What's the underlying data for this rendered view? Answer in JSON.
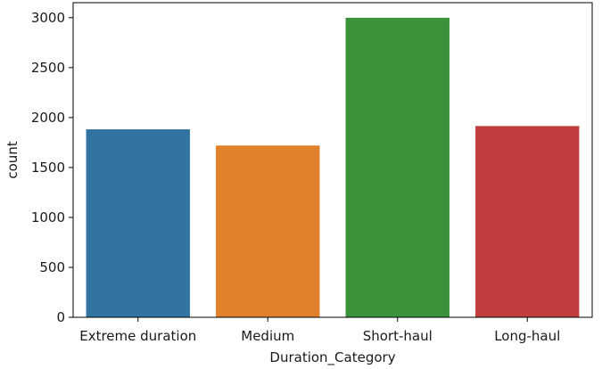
{
  "chart_data": {
    "type": "bar",
    "title": "",
    "xlabel": "Duration_Category",
    "ylabel": "count",
    "categories": [
      "Extreme duration",
      "Medium",
      "Short-haul",
      "Long-haul"
    ],
    "values": [
      1882,
      1720,
      2999,
      1915
    ],
    "colors": [
      "#3274a1",
      "#e1812c",
      "#3a923a",
      "#c03d3e"
    ],
    "ylim": [
      0,
      3150
    ],
    "yticks": [
      0,
      500,
      1000,
      1500,
      2000,
      2500,
      3000
    ],
    "grid": false,
    "legend": "none"
  }
}
